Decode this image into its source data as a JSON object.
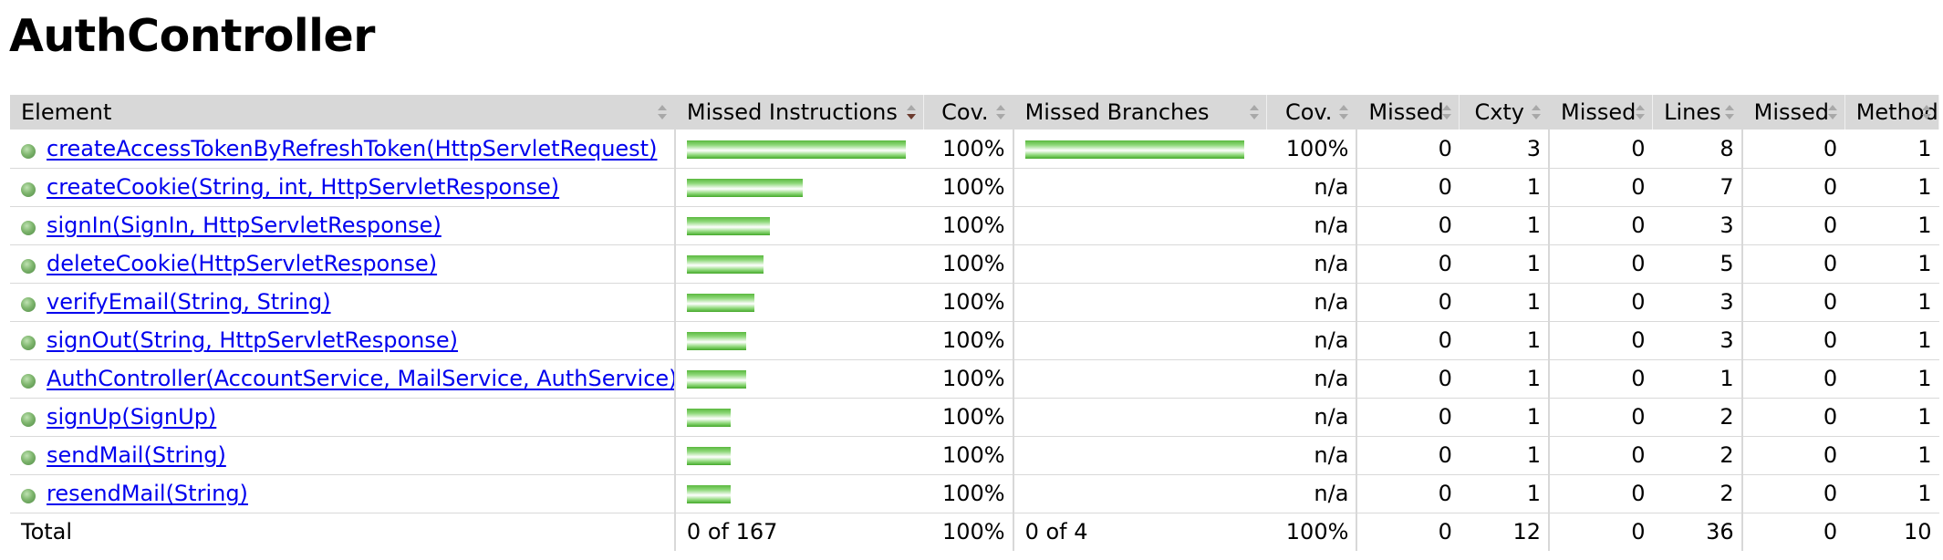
{
  "page": {
    "title": "AuthController"
  },
  "table": {
    "headers": {
      "element": "Element",
      "missed_instructions": "Missed Instructions",
      "cov_instructions": "Cov.",
      "missed_branches": "Missed Branches",
      "cov_branches": "Cov.",
      "missed_cxty": "Missed",
      "cxty": "Cxty",
      "missed_lines": "Missed",
      "lines": "Lines",
      "missed_methods": "Missed",
      "methods": "Methods"
    },
    "rows": [
      {
        "element": "createAccessTokenByRefreshToken(HttpServletRequest)",
        "instr_bar_fraction": 1.0,
        "instr_cov": "100%",
        "branch_bar_fraction": 1.0,
        "branch_cov": "100%",
        "missed_cxty": "0",
        "cxty": "3",
        "missed_lines": "0",
        "lines": "8",
        "missed_methods": "0",
        "methods": "1"
      },
      {
        "element": "createCookie(String, int, HttpServletResponse)",
        "instr_bar_fraction": 0.53,
        "instr_cov": "100%",
        "branch_bar_fraction": 0,
        "branch_cov": "n/a",
        "missed_cxty": "0",
        "cxty": "1",
        "missed_lines": "0",
        "lines": "7",
        "missed_methods": "0",
        "methods": "1"
      },
      {
        "element": "signIn(SignIn, HttpServletResponse)",
        "instr_bar_fraction": 0.38,
        "instr_cov": "100%",
        "branch_bar_fraction": 0,
        "branch_cov": "n/a",
        "missed_cxty": "0",
        "cxty": "1",
        "missed_lines": "0",
        "lines": "3",
        "missed_methods": "0",
        "methods": "1"
      },
      {
        "element": "deleteCookie(HttpServletResponse)",
        "instr_bar_fraction": 0.35,
        "instr_cov": "100%",
        "branch_bar_fraction": 0,
        "branch_cov": "n/a",
        "missed_cxty": "0",
        "cxty": "1",
        "missed_lines": "0",
        "lines": "5",
        "missed_methods": "0",
        "methods": "1"
      },
      {
        "element": "verifyEmail(String, String)",
        "instr_bar_fraction": 0.31,
        "instr_cov": "100%",
        "branch_bar_fraction": 0,
        "branch_cov": "n/a",
        "missed_cxty": "0",
        "cxty": "1",
        "missed_lines": "0",
        "lines": "3",
        "missed_methods": "0",
        "methods": "1"
      },
      {
        "element": "signOut(String, HttpServletResponse)",
        "instr_bar_fraction": 0.27,
        "instr_cov": "100%",
        "branch_bar_fraction": 0,
        "branch_cov": "n/a",
        "missed_cxty": "0",
        "cxty": "1",
        "missed_lines": "0",
        "lines": "3",
        "missed_methods": "0",
        "methods": "1"
      },
      {
        "element": "AuthController(AccountService, MailService, AuthService)",
        "instr_bar_fraction": 0.27,
        "instr_cov": "100%",
        "branch_bar_fraction": 0,
        "branch_cov": "n/a",
        "missed_cxty": "0",
        "cxty": "1",
        "missed_lines": "0",
        "lines": "1",
        "missed_methods": "0",
        "methods": "1"
      },
      {
        "element": "signUp(SignUp)",
        "instr_bar_fraction": 0.2,
        "instr_cov": "100%",
        "branch_bar_fraction": 0,
        "branch_cov": "n/a",
        "missed_cxty": "0",
        "cxty": "1",
        "missed_lines": "0",
        "lines": "2",
        "missed_methods": "0",
        "methods": "1"
      },
      {
        "element": "sendMail(String)",
        "instr_bar_fraction": 0.2,
        "instr_cov": "100%",
        "branch_bar_fraction": 0,
        "branch_cov": "n/a",
        "missed_cxty": "0",
        "cxty": "1",
        "missed_lines": "0",
        "lines": "2",
        "missed_methods": "0",
        "methods": "1"
      },
      {
        "element": "resendMail(String)",
        "instr_bar_fraction": 0.2,
        "instr_cov": "100%",
        "branch_bar_fraction": 0,
        "branch_cov": "n/a",
        "missed_cxty": "0",
        "cxty": "1",
        "missed_lines": "0",
        "lines": "2",
        "missed_methods": "0",
        "methods": "1"
      }
    ],
    "total": {
      "label": "Total",
      "missed_instructions": "0 of 167",
      "instr_cov": "100%",
      "missed_branches": "0 of 4",
      "branch_cov": "100%",
      "missed_cxty": "0",
      "cxty": "12",
      "missed_lines": "0",
      "lines": "36",
      "missed_methods": "0",
      "methods": "10"
    }
  },
  "icons": {
    "method_icon": "green-dot-icon",
    "sort_icon": "sort-arrows-icon",
    "sort_active_icon": "sort-desc-icon"
  },
  "colors": {
    "header_bg": "#d8d8d8",
    "link": "#0000ee",
    "bar_green": "#5ab83e"
  }
}
